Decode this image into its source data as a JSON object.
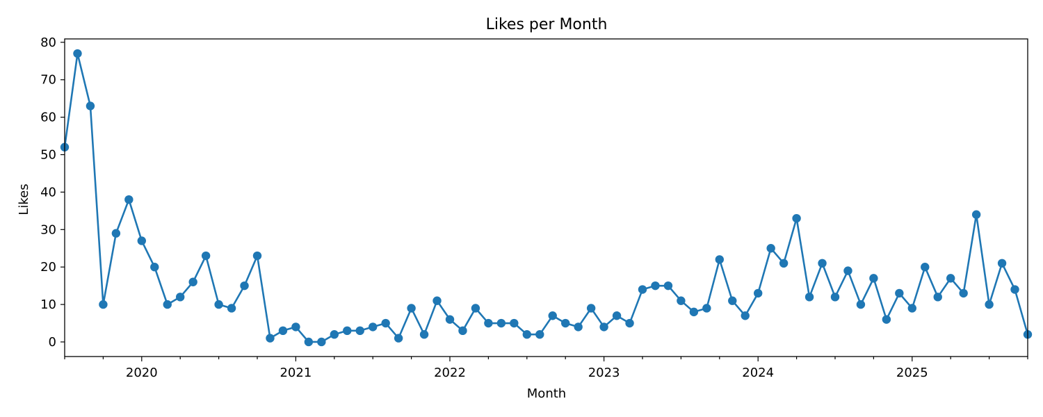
{
  "chart_data": {
    "type": "line",
    "title": "Likes per Month",
    "xlabel": "Month",
    "ylabel": "Likes",
    "grid": false,
    "legend": "none",
    "x_start": "2019-07",
    "x_end": "2025-10",
    "ylim": [
      -3.9,
      80.9
    ],
    "yticks": [
      0,
      10,
      20,
      30,
      40,
      50,
      60,
      70,
      80
    ],
    "xticks": [
      "2020",
      "2021",
      "2022",
      "2023",
      "2024",
      "2025"
    ],
    "series": [
      {
        "color": "#1f77b4",
        "x": [
          "2019-07",
          "2019-08",
          "2019-09",
          "2019-10",
          "2019-11",
          "2019-12",
          "2020-01",
          "2020-02",
          "2020-03",
          "2020-04",
          "2020-05",
          "2020-06",
          "2020-07",
          "2020-08",
          "2020-09",
          "2020-10",
          "2020-11",
          "2020-12",
          "2021-01",
          "2021-02",
          "2021-03",
          "2021-04",
          "2021-05",
          "2021-06",
          "2021-07",
          "2021-08",
          "2021-09",
          "2021-10",
          "2021-11",
          "2021-12",
          "2022-01",
          "2022-02",
          "2022-03",
          "2022-04",
          "2022-05",
          "2022-06",
          "2022-07",
          "2022-08",
          "2022-09",
          "2022-10",
          "2022-11",
          "2022-12",
          "2023-01",
          "2023-02",
          "2023-03",
          "2023-04",
          "2023-05",
          "2023-06",
          "2023-07",
          "2023-08",
          "2023-09",
          "2023-10",
          "2023-11",
          "2023-12",
          "2024-01",
          "2024-02",
          "2024-03",
          "2024-04",
          "2024-05",
          "2024-06",
          "2024-07",
          "2024-08",
          "2024-09",
          "2024-10",
          "2024-11",
          "2024-12",
          "2025-01",
          "2025-02",
          "2025-03",
          "2025-04",
          "2025-05",
          "2025-06",
          "2025-07",
          "2025-08",
          "2025-09",
          "2025-10"
        ],
        "values": [
          52,
          77,
          63,
          10,
          29,
          38,
          27,
          20,
          10,
          12,
          16,
          23,
          10,
          9,
          15,
          23,
          1,
          3,
          4,
          0,
          0,
          2,
          3,
          3,
          4,
          5,
          1,
          9,
          2,
          11,
          6,
          3,
          9,
          5,
          5,
          5,
          2,
          2,
          7,
          5,
          4,
          9,
          4,
          7,
          5,
          14,
          15,
          15,
          11,
          8,
          9,
          22,
          11,
          7,
          13,
          25,
          21,
          33,
          12,
          21,
          12,
          19,
          10,
          17,
          6,
          13,
          9,
          20,
          12,
          17,
          13,
          34,
          10,
          21,
          14,
          2
        ]
      }
    ]
  }
}
